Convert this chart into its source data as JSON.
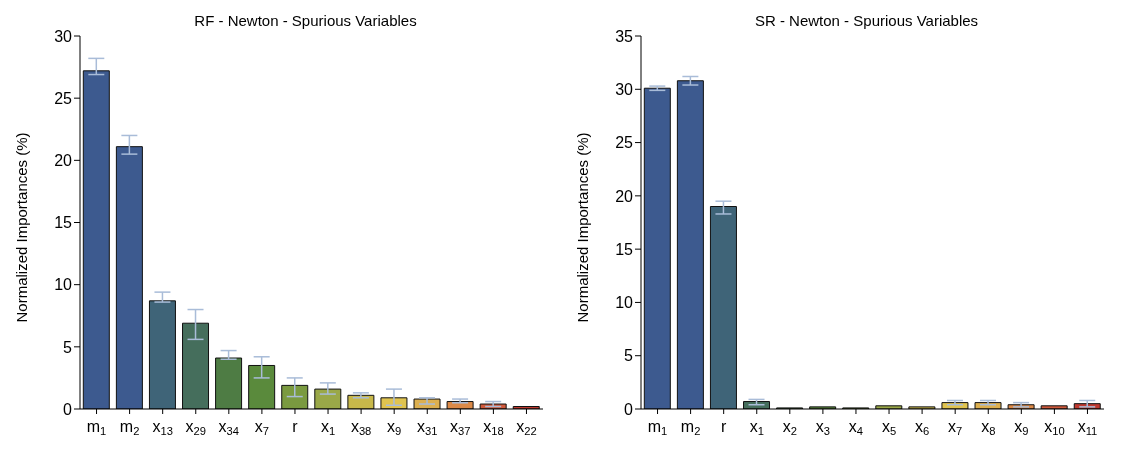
{
  "chart_data": [
    {
      "type": "bar",
      "title": "RF - Newton - Spurious Variables",
      "ylabel": "Normalized Importances (%)",
      "categories": [
        "m$_{1}$",
        "m$_{2}$",
        "x$_{13}$",
        "x$_{29}$",
        "x$_{34}$",
        "x$_{7}$",
        "r",
        "x$_{1}$",
        "x$_{38}$",
        "x$_{9}$",
        "x$_{31}$",
        "x$_{37}$",
        "x$_{18}$",
        "x$_{22}$"
      ],
      "values": [
        27.2,
        21.1,
        8.7,
        6.9,
        4.1,
        3.5,
        1.9,
        1.6,
        1.1,
        0.9,
        0.8,
        0.6,
        0.4,
        0.2
      ],
      "errors": [
        [
          26.9,
          28.2
        ],
        [
          20.5,
          22.0
        ],
        [
          8.6,
          9.4
        ],
        [
          5.6,
          8.0
        ],
        [
          4.0,
          4.7
        ],
        [
          2.5,
          4.2
        ],
        [
          1.0,
          2.5
        ],
        [
          1.2,
          2.1
        ],
        [
          0.9,
          1.3
        ],
        [
          0.3,
          1.6
        ],
        [
          0.4,
          0.9
        ],
        [
          0.5,
          0.8
        ],
        [
          0.2,
          0.6
        ],
        null
      ],
      "colors": [
        "#3d5a8f",
        "#3d5a8f",
        "#3f6478",
        "#456e5c",
        "#4e7c44",
        "#5a8a3c",
        "#7a9a40",
        "#9aa848",
        "#c8b84a",
        "#e0c450",
        "#ddb050",
        "#dc8a48",
        "#d05a3c",
        "#c03a30"
      ],
      "ylim": [
        0,
        30
      ],
      "yticks": [
        0,
        5,
        10,
        15,
        20,
        25,
        30
      ],
      "grid": false,
      "legend": false
    },
    {
      "type": "bar",
      "title": "SR - Newton - Spurious Variables",
      "ylabel": "Normalized Importances (%)",
      "categories": [
        "m$_{1}$",
        "m$_{2}$",
        "r",
        "x$_{1}$",
        "x$_{2}$",
        "x$_{3}$",
        "x$_{4}$",
        "x$_{5}$",
        "x$_{6}$",
        "x$_{7}$",
        "x$_{8}$",
        "x$_{9}$",
        "x$_{10}$",
        "x$_{11}$"
      ],
      "values": [
        30.1,
        30.8,
        19.0,
        0.7,
        0.1,
        0.2,
        0.1,
        0.3,
        0.2,
        0.6,
        0.6,
        0.4,
        0.3,
        0.5
      ],
      "errors": [
        [
          29.9,
          30.3
        ],
        [
          30.4,
          31.2
        ],
        [
          18.3,
          19.5
        ],
        [
          0.4,
          0.9
        ],
        null,
        null,
        null,
        null,
        null,
        [
          0.4,
          0.8
        ],
        [
          0.4,
          0.8
        ],
        [
          0.2,
          0.6
        ],
        null,
        [
          0.2,
          0.8
        ]
      ],
      "colors": [
        "#3d5a8f",
        "#3d5a8f",
        "#3f6478",
        "#456e5c",
        "#4e7c44",
        "#5a8a3c",
        "#7a9a40",
        "#9aa848",
        "#c8b84a",
        "#e0c450",
        "#ddb050",
        "#dc8a48",
        "#d05a3c",
        "#c03a30"
      ],
      "ylim": [
        0,
        35
      ],
      "yticks": [
        0,
        5,
        10,
        15,
        20,
        25,
        30,
        35
      ],
      "grid": false,
      "legend": false
    }
  ]
}
